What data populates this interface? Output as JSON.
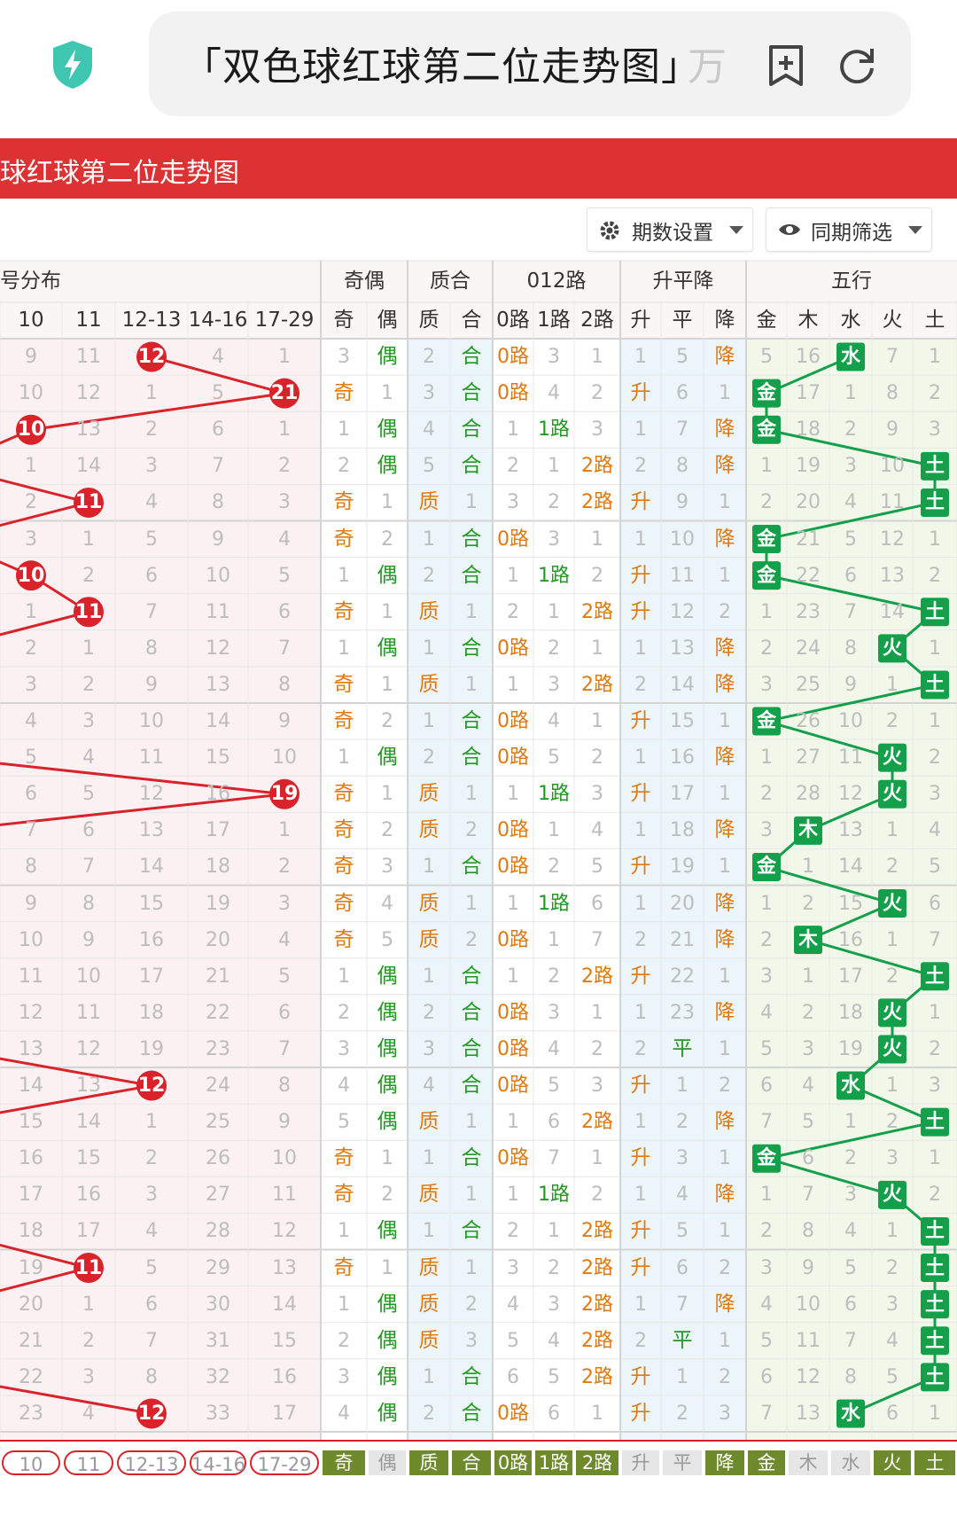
{
  "browser": {
    "url_text": "「双色球红球第二位走势图」",
    "url_overflow": "万",
    "icons": [
      "shield-bolt-icon",
      "bookmark-add-icon",
      "reload-icon"
    ]
  },
  "banner": {
    "title": "球红球第二位走势图"
  },
  "toolbar": {
    "period_label": "期数设置",
    "filter_label": "同期筛选"
  },
  "groups": [
    {
      "key": "dist",
      "label": "号分布"
    },
    {
      "key": "oe",
      "label": "奇偶"
    },
    {
      "key": "pc",
      "label": "质合"
    },
    {
      "key": "mod",
      "label": "012路"
    },
    {
      "key": "trend",
      "label": "升平降"
    },
    {
      "key": "wx",
      "label": "五行"
    }
  ],
  "columns": [
    "10",
    "11",
    "12-13",
    "14-16",
    "17-29",
    "奇",
    "偶",
    "质",
    "合",
    "0路",
    "1路",
    "2路",
    "升",
    "平",
    "降",
    "金",
    "木",
    "水",
    "火",
    "土"
  ],
  "rows": [
    [
      "9",
      "11",
      "12",
      "4",
      "1",
      "3",
      "偶",
      "2",
      "合",
      "0路",
      "3",
      "1",
      "1",
      "5",
      "降",
      "5",
      "16",
      "水",
      "7",
      "1"
    ],
    [
      "10",
      "12",
      "1",
      "5",
      "21",
      "奇",
      "1",
      "3",
      "合",
      "0路",
      "4",
      "2",
      "升",
      "6",
      "1",
      "金",
      "17",
      "1",
      "8",
      "2"
    ],
    [
      "10",
      "13",
      "2",
      "6",
      "1",
      "1",
      "偶",
      "4",
      "合",
      "1",
      "1路",
      "3",
      "1",
      "7",
      "降",
      "金",
      "18",
      "2",
      "9",
      "3"
    ],
    [
      "1",
      "14",
      "3",
      "7",
      "2",
      "2",
      "偶",
      "5",
      "合",
      "2",
      "1",
      "2路",
      "2",
      "8",
      "降",
      "1",
      "19",
      "3",
      "10",
      "土"
    ],
    [
      "2",
      "11",
      "4",
      "8",
      "3",
      "奇",
      "1",
      "质",
      "1",
      "3",
      "2",
      "2路",
      "升",
      "9",
      "1",
      "2",
      "20",
      "4",
      "11",
      "土"
    ],
    [
      "3",
      "1",
      "5",
      "9",
      "4",
      "奇",
      "2",
      "1",
      "合",
      "0路",
      "3",
      "1",
      "1",
      "10",
      "降",
      "金",
      "21",
      "5",
      "12",
      "1"
    ],
    [
      "10",
      "2",
      "6",
      "10",
      "5",
      "1",
      "偶",
      "2",
      "合",
      "1",
      "1路",
      "2",
      "升",
      "11",
      "1",
      "金",
      "22",
      "6",
      "13",
      "2"
    ],
    [
      "1",
      "11",
      "7",
      "11",
      "6",
      "奇",
      "1",
      "质",
      "1",
      "2",
      "1",
      "2路",
      "升",
      "12",
      "2",
      "1",
      "23",
      "7",
      "14",
      "土"
    ],
    [
      "2",
      "1",
      "8",
      "12",
      "7",
      "1",
      "偶",
      "1",
      "合",
      "0路",
      "2",
      "1",
      "1",
      "13",
      "降",
      "2",
      "24",
      "8",
      "火",
      "1"
    ],
    [
      "3",
      "2",
      "9",
      "13",
      "8",
      "奇",
      "1",
      "质",
      "1",
      "1",
      "3",
      "2路",
      "2",
      "14",
      "降",
      "3",
      "25",
      "9",
      "1",
      "土"
    ],
    [
      "4",
      "3",
      "10",
      "14",
      "9",
      "奇",
      "2",
      "1",
      "合",
      "0路",
      "4",
      "1",
      "升",
      "15",
      "1",
      "金",
      "26",
      "10",
      "2",
      "1"
    ],
    [
      "5",
      "4",
      "11",
      "15",
      "10",
      "1",
      "偶",
      "2",
      "合",
      "0路",
      "5",
      "2",
      "1",
      "16",
      "降",
      "1",
      "27",
      "11",
      "火",
      "2"
    ],
    [
      "6",
      "5",
      "12",
      "16",
      "19",
      "奇",
      "1",
      "质",
      "1",
      "1",
      "1路",
      "3",
      "升",
      "17",
      "1",
      "2",
      "28",
      "12",
      "火",
      "3"
    ],
    [
      "7",
      "6",
      "13",
      "17",
      "1",
      "奇",
      "2",
      "质",
      "2",
      "0路",
      "1",
      "4",
      "1",
      "18",
      "降",
      "3",
      "木",
      "13",
      "1",
      "4"
    ],
    [
      "8",
      "7",
      "14",
      "18",
      "2",
      "奇",
      "3",
      "1",
      "合",
      "0路",
      "2",
      "5",
      "升",
      "19",
      "1",
      "金",
      "1",
      "14",
      "2",
      "5"
    ],
    [
      "9",
      "8",
      "15",
      "19",
      "3",
      "奇",
      "4",
      "质",
      "1",
      "1",
      "1路",
      "6",
      "1",
      "20",
      "降",
      "1",
      "2",
      "15",
      "火",
      "6"
    ],
    [
      "10",
      "9",
      "16",
      "20",
      "4",
      "奇",
      "5",
      "质",
      "2",
      "0路",
      "1",
      "7",
      "2",
      "21",
      "降",
      "2",
      "木",
      "16",
      "1",
      "7"
    ],
    [
      "11",
      "10",
      "17",
      "21",
      "5",
      "1",
      "偶",
      "1",
      "合",
      "1",
      "2",
      "2路",
      "升",
      "22",
      "1",
      "3",
      "1",
      "17",
      "2",
      "土"
    ],
    [
      "12",
      "11",
      "18",
      "22",
      "6",
      "2",
      "偶",
      "2",
      "合",
      "0路",
      "3",
      "1",
      "1",
      "23",
      "降",
      "4",
      "2",
      "18",
      "火",
      "1"
    ],
    [
      "13",
      "12",
      "19",
      "23",
      "7",
      "3",
      "偶",
      "3",
      "合",
      "0路",
      "4",
      "2",
      "2",
      "平",
      "1",
      "5",
      "3",
      "19",
      "火",
      "2"
    ],
    [
      "14",
      "13",
      "12",
      "24",
      "8",
      "4",
      "偶",
      "4",
      "合",
      "0路",
      "5",
      "3",
      "升",
      "1",
      "2",
      "6",
      "4",
      "水",
      "1",
      "3"
    ],
    [
      "15",
      "14",
      "1",
      "25",
      "9",
      "5",
      "偶",
      "质",
      "1",
      "1",
      "6",
      "2路",
      "1",
      "2",
      "降",
      "7",
      "5",
      "1",
      "2",
      "土"
    ],
    [
      "16",
      "15",
      "2",
      "26",
      "10",
      "奇",
      "1",
      "1",
      "合",
      "0路",
      "7",
      "1",
      "升",
      "3",
      "1",
      "金",
      "6",
      "2",
      "3",
      "1"
    ],
    [
      "17",
      "16",
      "3",
      "27",
      "11",
      "奇",
      "2",
      "质",
      "1",
      "1",
      "1路",
      "2",
      "1",
      "4",
      "降",
      "1",
      "7",
      "3",
      "火",
      "2"
    ],
    [
      "18",
      "17",
      "4",
      "28",
      "12",
      "1",
      "偶",
      "1",
      "合",
      "2",
      "1",
      "2路",
      "升",
      "5",
      "1",
      "2",
      "8",
      "4",
      "1",
      "土"
    ],
    [
      "19",
      "11",
      "5",
      "29",
      "13",
      "奇",
      "1",
      "质",
      "1",
      "3",
      "2",
      "2路",
      "升",
      "6",
      "2",
      "3",
      "9",
      "5",
      "2",
      "土"
    ],
    [
      "20",
      "1",
      "6",
      "30",
      "14",
      "1",
      "偶",
      "质",
      "2",
      "4",
      "3",
      "2路",
      "1",
      "7",
      "降",
      "4",
      "10",
      "6",
      "3",
      "土"
    ],
    [
      "21",
      "2",
      "7",
      "31",
      "15",
      "2",
      "偶",
      "质",
      "3",
      "5",
      "4",
      "2路",
      "2",
      "平",
      "1",
      "5",
      "11",
      "7",
      "4",
      "土"
    ],
    [
      "22",
      "3",
      "8",
      "32",
      "16",
      "3",
      "偶",
      "1",
      "合",
      "6",
      "5",
      "2路",
      "升",
      "1",
      "2",
      "6",
      "12",
      "8",
      "5",
      "土"
    ],
    [
      "23",
      "4",
      "12",
      "33",
      "17",
      "4",
      "偶",
      "2",
      "合",
      "0路",
      "6",
      "1",
      "升",
      "2",
      "3",
      "7",
      "13",
      "水",
      "6",
      "1"
    ]
  ],
  "hits": [
    [
      2,
      "12"
    ],
    [
      4,
      "21"
    ],
    [
      0,
      "10"
    ],
    [
      -1,
      ""
    ],
    [
      1,
      "11"
    ],
    [
      -1,
      ""
    ],
    [
      0,
      "10"
    ],
    [
      1,
      "11"
    ],
    [
      -1,
      ""
    ],
    [
      -1,
      ""
    ],
    [
      -1,
      ""
    ],
    [
      -1,
      ""
    ],
    [
      4,
      "19"
    ],
    [
      -1,
      ""
    ],
    [
      -1,
      ""
    ],
    [
      -1,
      ""
    ],
    [
      -1,
      ""
    ],
    [
      -1,
      ""
    ],
    [
      -1,
      ""
    ],
    [
      -1,
      ""
    ],
    [
      2,
      "12"
    ],
    [
      -1,
      ""
    ],
    [
      -1,
      ""
    ],
    [
      -1,
      ""
    ],
    [
      -1,
      ""
    ],
    [
      1,
      "11"
    ],
    [
      -1,
      ""
    ],
    [
      -1,
      ""
    ],
    [
      -1,
      ""
    ],
    [
      2,
      "12"
    ]
  ],
  "footer": [
    "10",
    "11",
    "12-13",
    "14-16",
    "17-29",
    "奇",
    "偶",
    "质",
    "合",
    "0路",
    "1路",
    "2路",
    "升",
    "平",
    "降",
    "金",
    "木",
    "水",
    "火",
    "土"
  ],
  "footer_active": [
    true,
    true,
    true,
    true,
    true,
    true,
    false,
    true,
    true,
    true,
    true,
    true,
    false,
    false,
    true,
    true,
    false,
    false,
    true,
    true
  ],
  "colors": {
    "banner_red": "#dd3234",
    "ball_red": "#d9222a",
    "trend_line_red": "#d9222a",
    "wuxing_green": "#14a04a",
    "orange_text": "#e07a10",
    "green_text": "#229a22",
    "footer_olive": "#6e8a2c"
  }
}
